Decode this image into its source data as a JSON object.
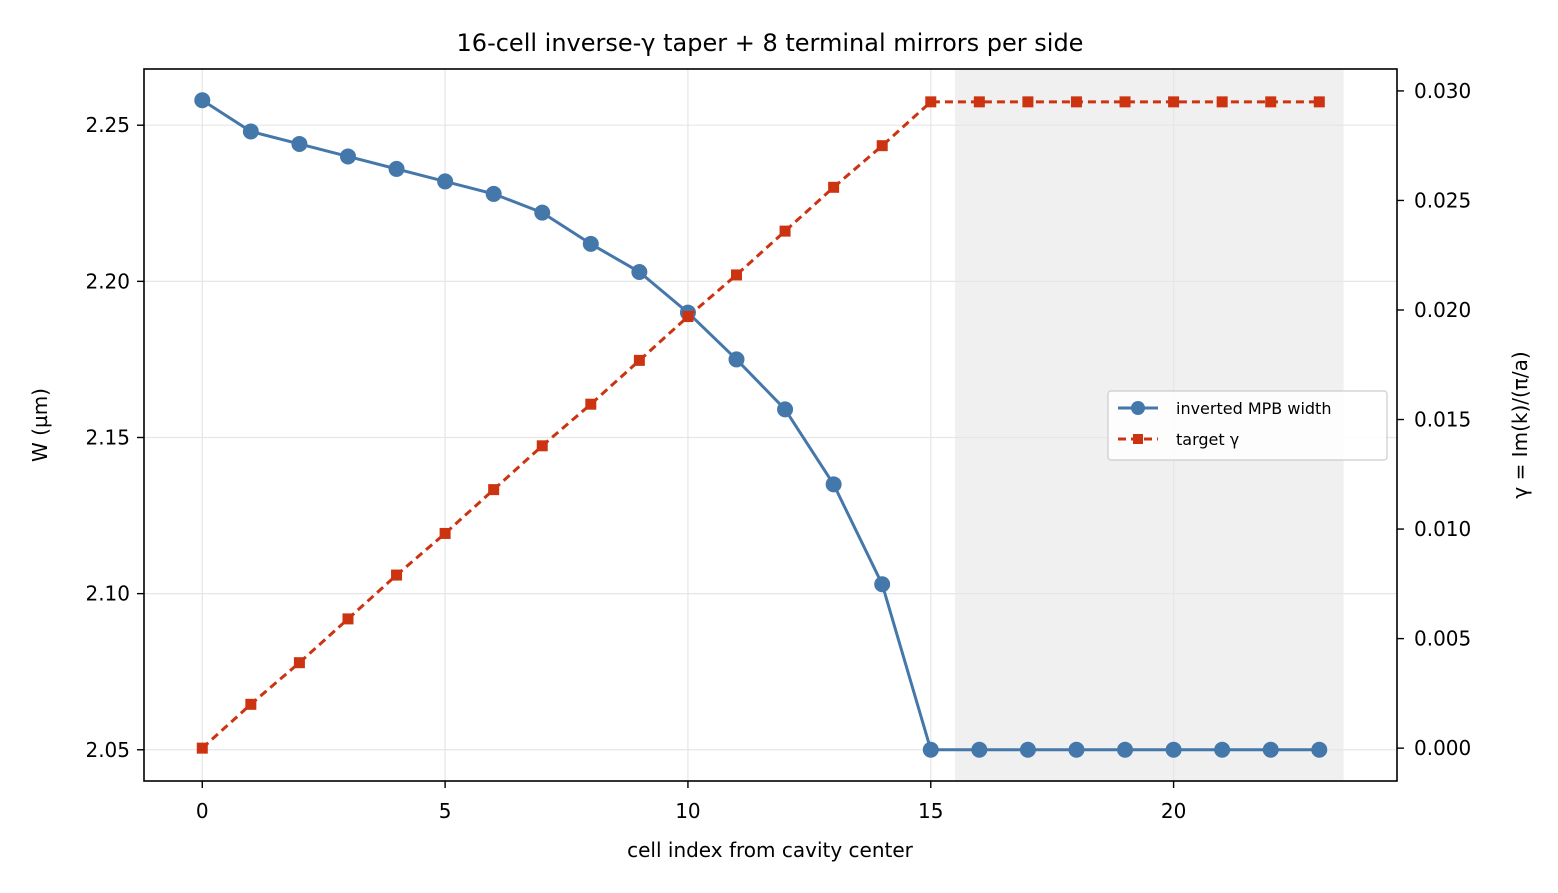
{
  "chart_data": {
    "type": "line",
    "title": "16-cell inverse-γ taper + 8 terminal mirrors per side",
    "xlabel": "cell index from cavity center",
    "ylabel_left": "W (µm)",
    "ylabel_right": "γ = Im(k)/(π/a)",
    "x": [
      0,
      1,
      2,
      3,
      4,
      5,
      6,
      7,
      8,
      9,
      10,
      11,
      12,
      13,
      14,
      15,
      16,
      17,
      18,
      19,
      20,
      21,
      22,
      23
    ],
    "xlim": [
      -1.2,
      24.6
    ],
    "xticks": [
      0,
      5,
      10,
      15,
      20
    ],
    "ylim_left": [
      2.04,
      2.268
    ],
    "yticks_left": [
      "2.05",
      "2.10",
      "2.15",
      "2.20",
      "2.25"
    ],
    "ylim_right": [
      -0.0015,
      0.031
    ],
    "yticks_right": [
      "0.000",
      "0.005",
      "0.010",
      "0.015",
      "0.020",
      "0.025",
      "0.030"
    ],
    "grid": true,
    "legend_position": "center-right",
    "shaded_region": {
      "x_start": 15.5,
      "x_end": 23.5,
      "color": "#f0f0f0"
    },
    "series": [
      {
        "name": "inverted MPB width",
        "axis": "left",
        "color": "#4477aa",
        "linestyle": "solid",
        "marker": "circle",
        "values": [
          2.258,
          2.248,
          2.244,
          2.24,
          2.236,
          2.232,
          2.228,
          2.222,
          2.212,
          2.203,
          2.19,
          2.175,
          2.159,
          2.135,
          2.103,
          2.05,
          2.05,
          2.05,
          2.05,
          2.05,
          2.05,
          2.05,
          2.05,
          2.05
        ]
      },
      {
        "name": "target γ",
        "axis": "right",
        "color": "#cc3311",
        "linestyle": "dashed",
        "marker": "square",
        "values": [
          0.0,
          0.002,
          0.0039,
          0.0059,
          0.0079,
          0.0098,
          0.0118,
          0.0138,
          0.0157,
          0.0177,
          0.0197,
          0.0216,
          0.0236,
          0.0256,
          0.0275,
          0.0295,
          0.0295,
          0.0295,
          0.0295,
          0.0295,
          0.0295,
          0.0295,
          0.0295,
          0.0295
        ]
      }
    ]
  }
}
